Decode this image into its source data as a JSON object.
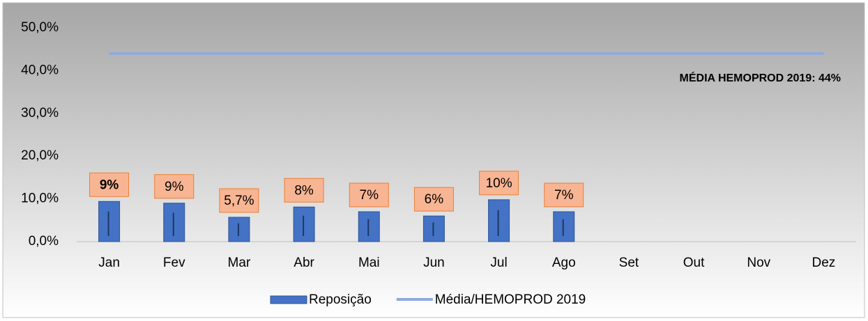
{
  "chart_data": {
    "type": "bar",
    "categories": [
      "Jan",
      "Fev",
      "Mar",
      "Abr",
      "Mai",
      "Jun",
      "Jul",
      "Ago",
      "Set",
      "Out",
      "Nov",
      "Dez"
    ],
    "series": [
      {
        "name": "Reposição",
        "type": "bar",
        "color": "#4472c4",
        "values": [
          9.4,
          9.0,
          5.7,
          8.1,
          7.0,
          6.0,
          9.8,
          7.0,
          null,
          null,
          null,
          null
        ],
        "value_labels": [
          "9%",
          "9%",
          "5,7%",
          "8%",
          "7%",
          "6%",
          "10%",
          "7%",
          null,
          null,
          null,
          null
        ]
      },
      {
        "name": "Média/HEMOPROD 2019",
        "type": "line",
        "color": "#8faadc",
        "values": [
          44,
          44,
          44,
          44,
          44,
          44,
          44,
          44,
          44,
          44,
          44,
          44
        ]
      }
    ],
    "annotation": "MÉDIA HEMOPROD 2019: 44%",
    "ylim": [
      0,
      50
    ],
    "yticks": [
      {
        "value": 0,
        "label": "0,0%"
      },
      {
        "value": 10,
        "label": "10,0%"
      },
      {
        "value": 20,
        "label": "20,0%"
      },
      {
        "value": 30,
        "label": "30,0%"
      },
      {
        "value": 40,
        "label": "40,0%"
      },
      {
        "value": 50,
        "label": "50,0%"
      }
    ],
    "legend": "bottom"
  }
}
